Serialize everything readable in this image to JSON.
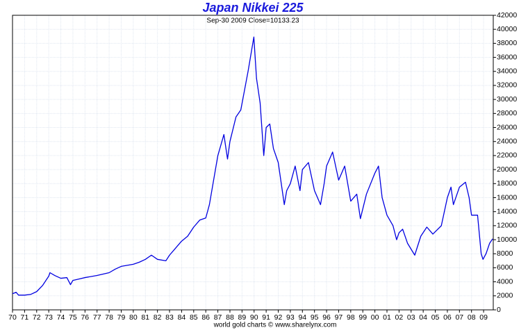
{
  "chart_data": {
    "type": "line",
    "title": "Japan Nikkei 225",
    "subtitle": "Sep-30  2009   Close=10133.23",
    "footer": "world gold charts © www.sharelynx.com",
    "x": [
      1970,
      1970.3,
      1970.5,
      1971,
      1971.5,
      1972,
      1972.5,
      1973,
      1973.1,
      1973.5,
      1974,
      1974.5,
      1974.8,
      1975,
      1975.5,
      1976,
      1977,
      1978,
      1978.5,
      1979,
      1980,
      1980.5,
      1981,
      1981.5,
      1982,
      1982.7,
      1983,
      1983.5,
      1984,
      1984.5,
      1985,
      1985.5,
      1986,
      1986.3,
      1986.6,
      1987,
      1987.5,
      1987.8,
      1988,
      1988.5,
      1988.9,
      1989.5,
      1989.98,
      1990.2,
      1990.5,
      1990.8,
      1991,
      1991.3,
      1991.6,
      1992,
      1992.5,
      1992.7,
      1993,
      1993.4,
      1993.8,
      1994,
      1994.5,
      1995,
      1995.5,
      1995.8,
      1996,
      1996.5,
      1997,
      1997.5,
      1998,
      1998.5,
      1998.8,
      1999.3,
      2000,
      2000.3,
      2000.6,
      2001,
      2001.5,
      2001.8,
      2002,
      2002.3,
      2002.7,
      2003.3,
      2003.8,
      2004.3,
      2004.8,
      2005.5,
      2006,
      2006.3,
      2006.5,
      2007,
      2007.5,
      2007.8,
      2008,
      2008.5,
      2008.8,
      2008.95,
      2009.2,
      2009.5,
      2009.75
    ],
    "series": [
      {
        "name": "Nikkei 225",
        "color": "#0000e0",
        "values": [
          2300,
          2500,
          2100,
          2100,
          2200,
          2600,
          3500,
          4800,
          5300,
          4900,
          4500,
          4600,
          3600,
          4200,
          4400,
          4600,
          4900,
          5300,
          5800,
          6200,
          6500,
          6800,
          7200,
          7800,
          7200,
          7000,
          7800,
          8800,
          9800,
          10500,
          11800,
          12800,
          13100,
          15000,
          18000,
          22000,
          25000,
          21500,
          24000,
          27500,
          28500,
          34000,
          38900,
          33000,
          29500,
          22000,
          26000,
          26500,
          23000,
          21000,
          15000,
          17000,
          18000,
          20500,
          17000,
          20000,
          21000,
          17000,
          15000,
          18000,
          20500,
          22500,
          18500,
          20500,
          15500,
          16500,
          13000,
          16500,
          19500,
          20500,
          16000,
          13500,
          12000,
          10000,
          11000,
          11500,
          9500,
          7800,
          10500,
          11800,
          10800,
          12000,
          16000,
          17500,
          15000,
          17500,
          18200,
          16000,
          13500,
          13500,
          8000,
          7200,
          8000,
          9500,
          10133.23
        ]
      }
    ],
    "xlim": [
      1970,
      2009.8
    ],
    "xticks": [
      {
        "value": 1970,
        "label": "70"
      },
      {
        "value": 1971,
        "label": "71"
      },
      {
        "value": 1972,
        "label": "72"
      },
      {
        "value": 1973,
        "label": "73"
      },
      {
        "value": 1974,
        "label": "74"
      },
      {
        "value": 1975,
        "label": "75"
      },
      {
        "value": 1976,
        "label": "76"
      },
      {
        "value": 1977,
        "label": "77"
      },
      {
        "value": 1978,
        "label": "78"
      },
      {
        "value": 1979,
        "label": "79"
      },
      {
        "value": 1980,
        "label": "80"
      },
      {
        "value": 1981,
        "label": "81"
      },
      {
        "value": 1982,
        "label": "82"
      },
      {
        "value": 1983,
        "label": "83"
      },
      {
        "value": 1984,
        "label": "84"
      },
      {
        "value": 1985,
        "label": "85"
      },
      {
        "value": 1986,
        "label": "86"
      },
      {
        "value": 1987,
        "label": "87"
      },
      {
        "value": 1988,
        "label": "88"
      },
      {
        "value": 1989,
        "label": "89"
      },
      {
        "value": 1990,
        "label": "90"
      },
      {
        "value": 1991,
        "label": "91"
      },
      {
        "value": 1992,
        "label": "92"
      },
      {
        "value": 1993,
        "label": "93"
      },
      {
        "value": 1994,
        "label": "94"
      },
      {
        "value": 1995,
        "label": "95"
      },
      {
        "value": 1996,
        "label": "96"
      },
      {
        "value": 1997,
        "label": "97"
      },
      {
        "value": 1998,
        "label": "98"
      },
      {
        "value": 1999,
        "label": "99"
      },
      {
        "value": 2000,
        "label": "00"
      },
      {
        "value": 2001,
        "label": "01"
      },
      {
        "value": 2002,
        "label": "02"
      },
      {
        "value": 2003,
        "label": "03"
      },
      {
        "value": 2004,
        "label": "04"
      },
      {
        "value": 2005,
        "label": "05"
      },
      {
        "value": 2006,
        "label": "06"
      },
      {
        "value": 2007,
        "label": "07"
      },
      {
        "value": 2008,
        "label": "08"
      },
      {
        "value": 2009,
        "label": "09"
      }
    ],
    "ylim": [
      0,
      42000
    ],
    "yticks": [
      0,
      2000,
      4000,
      6000,
      8000,
      10000,
      12000,
      14000,
      16000,
      18000,
      20000,
      22000,
      24000,
      26000,
      28000,
      30000,
      32000,
      34000,
      36000,
      38000,
      40000,
      42000
    ],
    "grid": true
  }
}
